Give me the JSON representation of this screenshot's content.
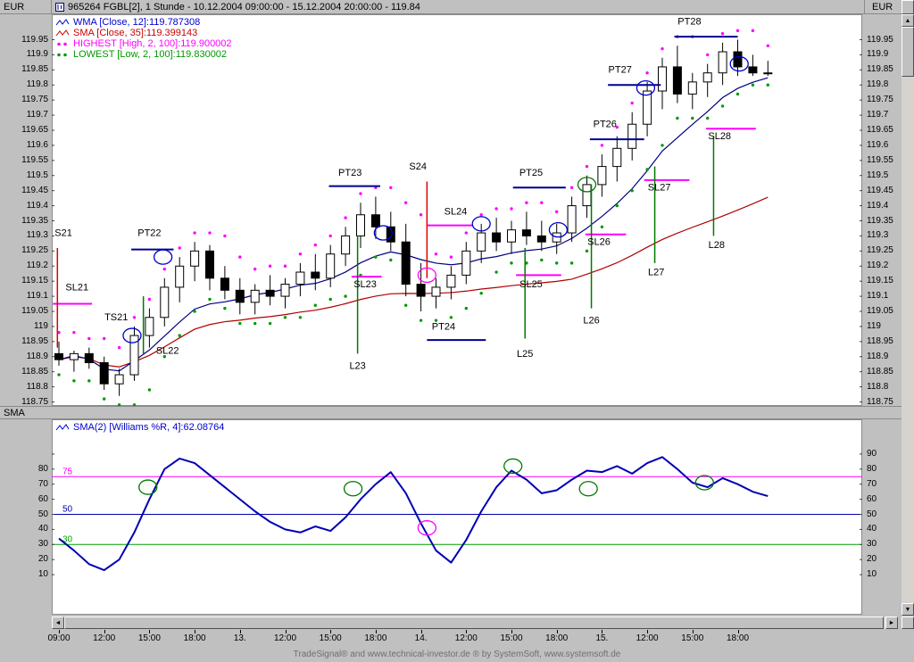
{
  "window": {
    "title": "965264  FGBL[2], 1 Stunde - 10.12.2004 09:00:00 - 15.12.2004 20:00:00 - 119.84",
    "left_axis_label": "EUR",
    "right_axis_label": "EUR",
    "lower_left_label": "SMA",
    "footer": "TradeSignal® and www.technical-investor.de ® by SystemSoft, www.systemsoft.de"
  },
  "legend_main": [
    {
      "label": "WMA [Close, 12]:119.787308",
      "color": "#0000cc",
      "icon": "zigzag"
    },
    {
      "label": "SMA [Close, 35]:119.399143",
      "color": "#cc0000",
      "icon": "zigzag"
    },
    {
      "label": "HIGHEST [High, 2, 100]:119.900002",
      "color": "#ff00ff",
      "icon": "dots"
    },
    {
      "label": "LOWEST [Low, 2, 100]:119.830002",
      "color": "#009900",
      "icon": "dots"
    }
  ],
  "legend_lower": {
    "label": "SMA(2) [Williams %R, 4]:62.08764",
    "color": "#0000cc",
    "icon": "zigzag"
  },
  "chart_data": {
    "type": "candlestick",
    "instrument": "FGBL[2]",
    "timeframe": "1 Stunde",
    "range": "10.12.2004 09:00:00 - 15.12.2004 20:00:00",
    "last_price": 119.84,
    "price_axis": {
      "min": 118.75,
      "max": 119.95,
      "step": 0.05,
      "currency": "EUR"
    },
    "candles_format": [
      "time",
      "open",
      "high",
      "low",
      "close"
    ],
    "candles": [
      [
        "10.12. 09:00",
        118.91,
        118.95,
        118.87,
        118.89
      ],
      [
        "10.12. 10:00",
        118.89,
        118.92,
        118.85,
        118.91
      ],
      [
        "10.12. 11:00",
        118.91,
        118.93,
        118.86,
        118.88
      ],
      [
        "10.12. 12:00",
        118.88,
        118.9,
        118.79,
        118.81
      ],
      [
        "10.12. 13:00",
        118.81,
        118.86,
        118.77,
        118.84
      ],
      [
        "10.12. 14:00",
        118.84,
        119.0,
        118.82,
        118.97
      ],
      [
        "10.12. 15:00",
        118.97,
        119.06,
        118.93,
        119.03
      ],
      [
        "10.12. 16:00",
        119.03,
        119.16,
        119.0,
        119.13
      ],
      [
        "10.12. 17:00",
        119.13,
        119.23,
        119.08,
        119.2
      ],
      [
        "10.12. 18:00",
        119.2,
        119.28,
        119.15,
        119.25
      ],
      [
        "10.12. 19:00",
        119.25,
        119.27,
        119.12,
        119.16
      ],
      [
        "10.12. 20:00",
        119.16,
        119.2,
        119.09,
        119.12
      ],
      [
        "13.12. 09:00",
        119.12,
        119.16,
        119.04,
        119.08
      ],
      [
        "13.12. 10:00",
        119.08,
        119.14,
        119.04,
        119.12
      ],
      [
        "13.12. 11:00",
        119.12,
        119.17,
        119.07,
        119.1
      ],
      [
        "13.12. 12:00",
        119.1,
        119.16,
        119.06,
        119.14
      ],
      [
        "13.12. 13:00",
        119.14,
        119.21,
        119.1,
        119.18
      ],
      [
        "13.12. 14:00",
        119.18,
        119.24,
        119.12,
        119.16
      ],
      [
        "13.12. 15:00",
        119.16,
        119.27,
        119.13,
        119.24
      ],
      [
        "13.12. 16:00",
        119.24,
        119.33,
        119.2,
        119.3
      ],
      [
        "13.12. 17:00",
        119.3,
        119.41,
        119.26,
        119.37
      ],
      [
        "13.12. 18:00",
        119.37,
        119.43,
        119.29,
        119.33
      ],
      [
        "13.12. 19:00",
        119.33,
        119.38,
        119.25,
        119.28
      ],
      [
        "13.12. 20:00",
        119.28,
        119.34,
        119.1,
        119.14
      ],
      [
        "14.12. 09:00",
        119.14,
        119.21,
        119.05,
        119.1
      ],
      [
        "14.12. 10:00",
        119.1,
        119.16,
        119.06,
        119.13
      ],
      [
        "14.12. 11:00",
        119.13,
        119.2,
        119.09,
        119.17
      ],
      [
        "14.12. 12:00",
        119.17,
        119.28,
        119.14,
        119.25
      ],
      [
        "14.12. 13:00",
        119.25,
        119.34,
        119.21,
        119.31
      ],
      [
        "14.12. 14:00",
        119.31,
        119.36,
        119.25,
        119.28
      ],
      [
        "14.12. 15:00",
        119.28,
        119.35,
        119.24,
        119.32
      ],
      [
        "14.12. 16:00",
        119.32,
        119.38,
        119.27,
        119.3
      ],
      [
        "14.12. 17:00",
        119.3,
        119.35,
        119.25,
        119.28
      ],
      [
        "14.12. 18:00",
        119.28,
        119.34,
        119.24,
        119.31
      ],
      [
        "14.12. 19:00",
        119.31,
        119.43,
        119.28,
        119.4
      ],
      [
        "14.12. 20:00",
        119.4,
        119.5,
        119.36,
        119.47
      ],
      [
        "15.12. 09:00",
        119.47,
        119.57,
        119.43,
        119.53
      ],
      [
        "15.12. 10:00",
        119.53,
        119.63,
        119.48,
        119.59
      ],
      [
        "15.12. 11:00",
        119.59,
        119.71,
        119.55,
        119.67
      ],
      [
        "15.12. 12:00",
        119.67,
        119.81,
        119.63,
        119.78
      ],
      [
        "15.12. 13:00",
        119.78,
        119.89,
        119.72,
        119.86
      ],
      [
        "15.12. 14:00",
        119.86,
        119.93,
        119.74,
        119.77
      ],
      [
        "15.12. 15:00",
        119.77,
        119.84,
        119.72,
        119.81
      ],
      [
        "15.12. 16:00",
        119.81,
        119.87,
        119.76,
        119.84
      ],
      [
        "15.12. 17:00",
        119.84,
        119.94,
        119.8,
        119.91
      ],
      [
        "15.12. 18:00",
        119.91,
        119.95,
        119.83,
        119.86
      ],
      [
        "15.12. 19:00",
        119.86,
        119.9,
        119.83,
        119.84
      ],
      [
        "15.12. 20:00",
        119.84,
        119.88,
        119.83,
        119.84
      ]
    ],
    "indicators": {
      "wma": {
        "label": "WMA [Close, 12]",
        "value": 119.787308,
        "color": "#000080",
        "period": 12
      },
      "sma": {
        "label": "SMA [Close, 35]",
        "value": 119.399143,
        "color": "#b00000",
        "period": 35
      },
      "highest": {
        "label": "HIGHEST [High, 2, 100]",
        "value": 119.900002,
        "color": "#ff00ff"
      },
      "lowest": {
        "label": "LOWEST [Low, 2, 100]",
        "value": 119.830002,
        "color": "#009900"
      }
    },
    "oscillator": {
      "label": "SMA(2) [Williams %R, 4]",
      "last_value": 62.08764,
      "color": "#0000b4",
      "values": [
        34,
        26,
        17,
        13,
        20,
        38,
        60,
        80,
        87,
        84,
        76,
        68,
        60,
        52,
        45,
        40,
        38,
        42,
        39,
        48,
        60,
        70,
        78,
        64,
        44,
        26,
        18,
        33,
        52,
        68,
        79,
        73,
        64,
        66,
        73,
        79,
        78,
        82,
        77,
        84,
        88,
        80,
        71,
        68,
        74,
        70,
        65,
        62.09
      ],
      "ref_lines": [
        {
          "value": 75,
          "color": "#ff00ff"
        },
        {
          "value": 50,
          "color": "#0000aa"
        },
        {
          "value": 30,
          "color": "#00a000"
        }
      ],
      "left_ticks": [
        80,
        70,
        60,
        50,
        40,
        30,
        20,
        10
      ],
      "right_ticks": [
        90,
        80,
        70,
        60,
        50,
        40,
        30,
        20,
        10
      ]
    },
    "x_ticks": [
      {
        "i": 0,
        "label": "09:00"
      },
      {
        "i": 3,
        "label": "12:00"
      },
      {
        "i": 6,
        "label": "15:00"
      },
      {
        "i": 9,
        "label": "18:00"
      },
      {
        "i": 12,
        "label": "13."
      },
      {
        "i": 15,
        "label": "12:00"
      },
      {
        "i": 18,
        "label": "15:00"
      },
      {
        "i": 21,
        "label": "18:00"
      },
      {
        "i": 24,
        "label": "14."
      },
      {
        "i": 27,
        "label": "12:00"
      },
      {
        "i": 30,
        "label": "15:00"
      },
      {
        "i": 33,
        "label": "18:00"
      },
      {
        "i": 36,
        "label": "15."
      },
      {
        "i": 39,
        "label": "12:00"
      },
      {
        "i": 42,
        "label": "15:00"
      },
      {
        "i": 45,
        "label": "18:00"
      }
    ],
    "annotations": {
      "texts": [
        {
          "label": "S21",
          "i": 0.3,
          "p": 119.3
        },
        {
          "label": "SL21",
          "i": 1.2,
          "p": 119.12
        },
        {
          "label": "TS21",
          "i": 3.8,
          "p": 119.02
        },
        {
          "label": "SL22",
          "i": 7.2,
          "p": 118.91
        },
        {
          "label": "PT22",
          "i": 6.0,
          "p": 119.3
        },
        {
          "label": "PT23",
          "i": 19.3,
          "p": 119.5
        },
        {
          "label": "SL23",
          "i": 20.3,
          "p": 119.13
        },
        {
          "label": "L23",
          "i": 19.8,
          "p": 118.86
        },
        {
          "label": "S24",
          "i": 23.8,
          "p": 119.52
        },
        {
          "label": "SL24",
          "i": 26.3,
          "p": 119.37
        },
        {
          "label": "PT24",
          "i": 25.5,
          "p": 118.99
        },
        {
          "label": "PT25",
          "i": 31.3,
          "p": 119.5
        },
        {
          "label": "SL25",
          "i": 31.3,
          "p": 119.13
        },
        {
          "label": "L25",
          "i": 30.9,
          "p": 118.9
        },
        {
          "label": "PT26",
          "i": 36.2,
          "p": 119.66
        },
        {
          "label": "SL26",
          "i": 35.8,
          "p": 119.27
        },
        {
          "label": "L26",
          "i": 35.3,
          "p": 119.01
        },
        {
          "label": "PT27",
          "i": 37.2,
          "p": 119.84
        },
        {
          "label": "SL27",
          "i": 39.8,
          "p": 119.45
        },
        {
          "label": "L27",
          "i": 39.6,
          "p": 119.17
        },
        {
          "label": "PT28",
          "i": 41.8,
          "p": 120.0
        },
        {
          "label": "SL28",
          "i": 43.8,
          "p": 119.62
        },
        {
          "label": "L28",
          "i": 43.6,
          "p": 119.26
        }
      ],
      "hlines": [
        {
          "p": 119.075,
          "i1": -0.4,
          "i2": 2.2,
          "color": "#ff00ff"
        },
        {
          "p": 119.255,
          "i1": 4.8,
          "i2": 7.6,
          "color": "#000090"
        },
        {
          "p": 119.465,
          "i1": 17.9,
          "i2": 21.3,
          "color": "#000090"
        },
        {
          "p": 119.165,
          "i1": 19.4,
          "i2": 21.4,
          "color": "#ff00ff"
        },
        {
          "p": 119.335,
          "i1": 24.4,
          "i2": 27.4,
          "color": "#ff00ff"
        },
        {
          "p": 118.955,
          "i1": 24.4,
          "i2": 28.3,
          "color": "#000090"
        },
        {
          "p": 119.46,
          "i1": 30.1,
          "i2": 33.6,
          "color": "#000090"
        },
        {
          "p": 119.17,
          "i1": 30.3,
          "i2": 33.3,
          "color": "#ff00ff"
        },
        {
          "p": 119.62,
          "i1": 35.2,
          "i2": 38.8,
          "color": "#000090"
        },
        {
          "p": 119.305,
          "i1": 34.9,
          "i2": 37.6,
          "color": "#ff00ff"
        },
        {
          "p": 119.8,
          "i1": 36.4,
          "i2": 39.9,
          "color": "#000090"
        },
        {
          "p": 119.485,
          "i1": 38.8,
          "i2": 41.8,
          "color": "#ff00ff"
        },
        {
          "p": 119.96,
          "i1": 40.8,
          "i2": 45.0,
          "color": "#000090"
        },
        {
          "p": 119.655,
          "i1": 42.9,
          "i2": 46.2,
          "color": "#ff00ff"
        }
      ],
      "vlines": [
        {
          "i": -0.1,
          "p1": 119.26,
          "p2": 118.93,
          "color": "#e00000"
        },
        {
          "i": 5.6,
          "p1": 119.1,
          "p2": 118.91,
          "color": "#007800"
        },
        {
          "i": 19.8,
          "p1": 119.3,
          "p2": 118.91,
          "color": "#007800"
        },
        {
          "i": 24.4,
          "p1": 119.48,
          "p2": 119.16,
          "color": "#e00000"
        },
        {
          "i": 30.9,
          "p1": 119.26,
          "p2": 118.96,
          "color": "#007800"
        },
        {
          "i": 35.3,
          "p1": 119.47,
          "p2": 119.06,
          "color": "#007800"
        },
        {
          "i": 39.5,
          "p1": 119.53,
          "p2": 119.21,
          "color": "#007800"
        },
        {
          "i": 43.4,
          "p1": 119.63,
          "p2": 119.3,
          "color": "#007800"
        }
      ],
      "circles": [
        {
          "i": 4.85,
          "p": 118.97,
          "color": "#0000cc"
        },
        {
          "i": 6.9,
          "p": 119.23,
          "color": "#0000cc"
        },
        {
          "i": 21.5,
          "p": 119.31,
          "color": "#0000cc"
        },
        {
          "i": 24.4,
          "p": 119.17,
          "color": "#ff00ff"
        },
        {
          "i": 28.0,
          "p": 119.34,
          "color": "#0000cc"
        },
        {
          "i": 33.1,
          "p": 119.32,
          "color": "#0000cc"
        },
        {
          "i": 35.0,
          "p": 119.47,
          "color": "#007800"
        },
        {
          "i": 38.9,
          "p": 119.79,
          "color": "#0000cc"
        },
        {
          "i": 45.1,
          "p": 119.87,
          "color": "#0000cc"
        }
      ],
      "osc_circles": [
        {
          "i": 5.9,
          "v": 68,
          "color": "#007800"
        },
        {
          "i": 19.5,
          "v": 67,
          "color": "#007800"
        },
        {
          "i": 24.4,
          "v": 41,
          "color": "#ff00ff"
        },
        {
          "i": 30.1,
          "v": 82,
          "color": "#007800"
        },
        {
          "i": 35.1,
          "v": 67,
          "color": "#007800"
        },
        {
          "i": 42.8,
          "v": 71,
          "color": "#007800"
        }
      ]
    }
  }
}
